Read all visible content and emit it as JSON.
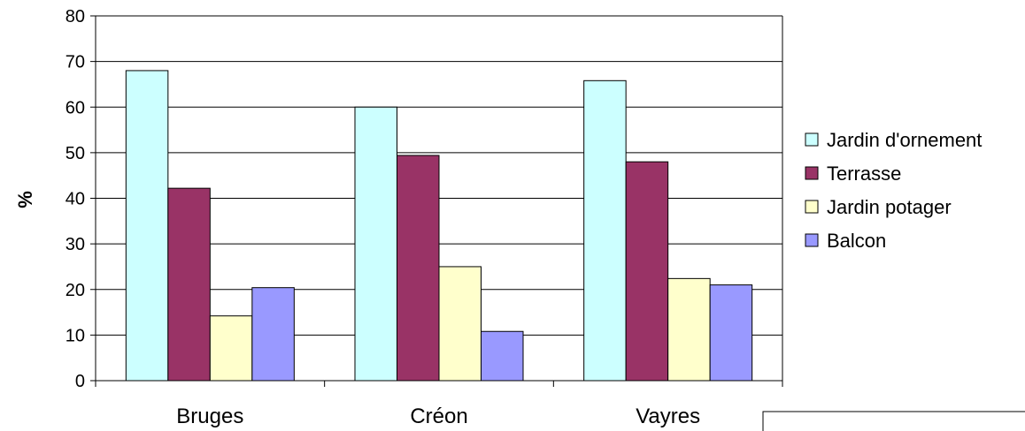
{
  "chart_data": {
    "type": "bar",
    "categories": [
      "Bruges",
      "Créon",
      "Vayres"
    ],
    "series": [
      {
        "name": "Jardin d'ornement",
        "values": [
          68,
          60,
          65.8
        ],
        "color": "#ccffff"
      },
      {
        "name": "Terrasse",
        "values": [
          42.2,
          49.4,
          48
        ],
        "color": "#993366"
      },
      {
        "name": "Jardin potager",
        "values": [
          14.2,
          25,
          22.4
        ],
        "color": "#ffffcc"
      },
      {
        "name": "Balcon",
        "values": [
          20.4,
          10.8,
          21
        ],
        "color": "#9999ff"
      }
    ],
    "title": "",
    "xlabel": "",
    "ylabel": "%",
    "ylim": [
      0,
      80
    ],
    "yticks": [
      0,
      10,
      20,
      30,
      40,
      50,
      60,
      70,
      80
    ],
    "grid": true,
    "legend_position": "right"
  }
}
